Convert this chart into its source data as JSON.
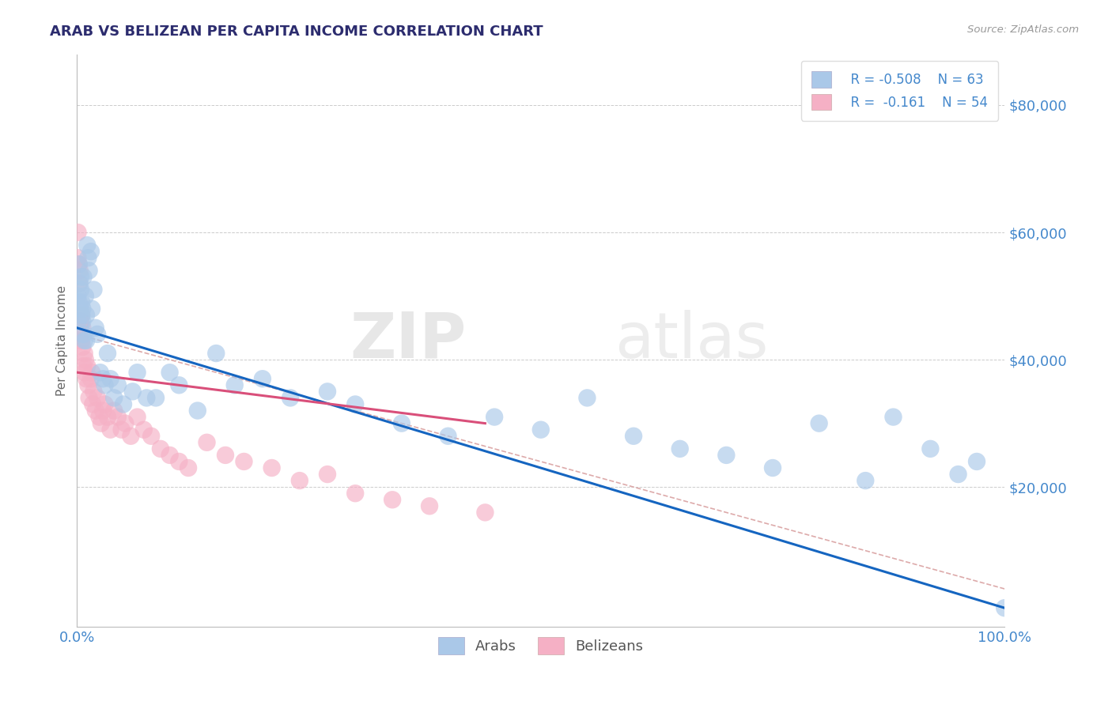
{
  "title": "ARAB VS BELIZEAN PER CAPITA INCOME CORRELATION CHART",
  "source_text": "Source: ZipAtlas.com",
  "ylabel": "Per Capita Income",
  "xlim": [
    0.0,
    1.0
  ],
  "ylim": [
    -2000,
    88000
  ],
  "yticks": [
    0,
    20000,
    40000,
    60000,
    80000
  ],
  "ytick_labels": [
    "",
    "$20,000",
    "$40,000",
    "$60,000",
    "$80,000"
  ],
  "xtick_labels": [
    "0.0%",
    "100.0%"
  ],
  "arab_color": "#aac8e8",
  "belizean_color": "#f5b0c5",
  "arab_line_color": "#1565c0",
  "belizean_line_color": "#d94f7a",
  "overall_line_color": "#ddaaaa",
  "legend_arab_label": "Arabs",
  "legend_belizean_label": "Belizeans",
  "watermark_zip": "ZIP",
  "watermark_atlas": "atlas",
  "title_color": "#2c2c6e",
  "axis_label_color": "#666666",
  "tick_color": "#4488cc",
  "arab_scatter_x": [
    0.001,
    0.001,
    0.002,
    0.002,
    0.003,
    0.003,
    0.004,
    0.004,
    0.005,
    0.005,
    0.006,
    0.006,
    0.007,
    0.007,
    0.008,
    0.009,
    0.01,
    0.01,
    0.011,
    0.012,
    0.013,
    0.015,
    0.016,
    0.018,
    0.02,
    0.022,
    0.025,
    0.028,
    0.03,
    0.033,
    0.036,
    0.04,
    0.044,
    0.05,
    0.06,
    0.065,
    0.075,
    0.085,
    0.1,
    0.11,
    0.13,
    0.15,
    0.17,
    0.2,
    0.23,
    0.27,
    0.3,
    0.35,
    0.4,
    0.45,
    0.5,
    0.55,
    0.6,
    0.65,
    0.7,
    0.75,
    0.8,
    0.85,
    0.88,
    0.92,
    0.95,
    0.97,
    1.0
  ],
  "arab_scatter_y": [
    50000,
    46000,
    55000,
    49000,
    52000,
    48000,
    51000,
    53000,
    49000,
    47000,
    46000,
    48000,
    53000,
    44000,
    43000,
    50000,
    47000,
    43000,
    58000,
    56000,
    54000,
    57000,
    48000,
    51000,
    45000,
    44000,
    38000,
    37000,
    36000,
    41000,
    37000,
    34000,
    36000,
    33000,
    35000,
    38000,
    34000,
    34000,
    38000,
    36000,
    32000,
    41000,
    36000,
    37000,
    34000,
    35000,
    33000,
    30000,
    28000,
    31000,
    29000,
    34000,
    28000,
    26000,
    25000,
    23000,
    30000,
    21000,
    31000,
    26000,
    22000,
    24000,
    1000
  ],
  "belizean_scatter_x": [
    0.001,
    0.001,
    0.002,
    0.002,
    0.003,
    0.003,
    0.004,
    0.004,
    0.005,
    0.005,
    0.006,
    0.006,
    0.007,
    0.008,
    0.008,
    0.009,
    0.01,
    0.011,
    0.012,
    0.013,
    0.015,
    0.016,
    0.017,
    0.018,
    0.02,
    0.022,
    0.024,
    0.026,
    0.028,
    0.03,
    0.033,
    0.036,
    0.04,
    0.044,
    0.048,
    0.052,
    0.058,
    0.065,
    0.072,
    0.08,
    0.09,
    0.1,
    0.11,
    0.12,
    0.14,
    0.16,
    0.18,
    0.21,
    0.24,
    0.27,
    0.3,
    0.34,
    0.38,
    0.44
  ],
  "belizean_scatter_y": [
    60000,
    56000,
    55000,
    52000,
    54000,
    45000,
    43000,
    46000,
    47000,
    43000,
    42000,
    45000,
    39000,
    38000,
    41000,
    40000,
    37000,
    39000,
    36000,
    34000,
    37000,
    38000,
    33000,
    35000,
    32000,
    34000,
    31000,
    30000,
    32000,
    33000,
    31000,
    29000,
    32000,
    31000,
    29000,
    30000,
    28000,
    31000,
    29000,
    28000,
    26000,
    25000,
    24000,
    23000,
    27000,
    25000,
    24000,
    23000,
    21000,
    22000,
    19000,
    18000,
    17000,
    16000
  ],
  "arab_trend_x0": 0.0,
  "arab_trend_y0": 45000,
  "arab_trend_x1": 1.0,
  "arab_trend_y1": 1000,
  "belizean_trend_x0": 0.0,
  "belizean_trend_y0": 38000,
  "belizean_trend_x1": 0.44,
  "belizean_trend_y1": 30000,
  "overall_trend_x0": 0.0,
  "overall_trend_y0": 44000,
  "overall_trend_x1": 1.0,
  "overall_trend_y1": 4000
}
